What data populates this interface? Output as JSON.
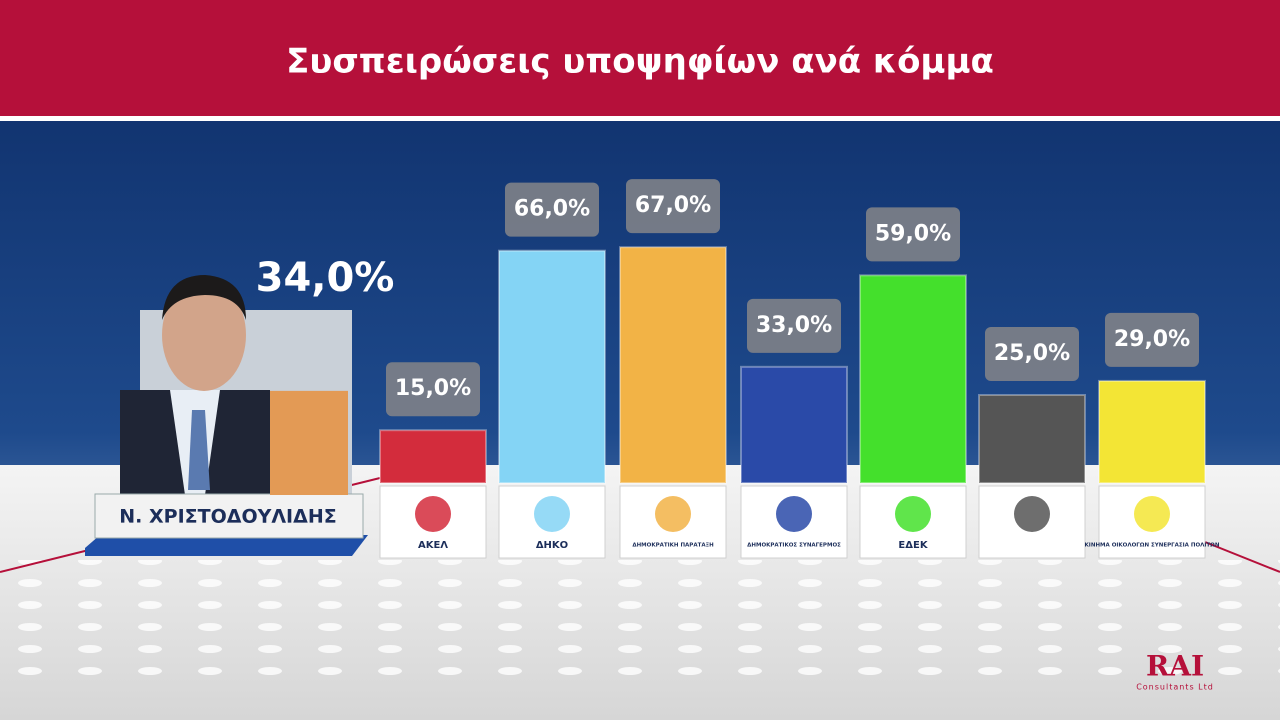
{
  "chart_data": {
    "type": "bar",
    "title": "Συσπειρώσεις υποψηφίων ανά κόμμα",
    "categories": [
      "Ν. ΧΡΙΣΤΟΔΟΥΛΙΔΗΣ",
      "ΑΚΕΛ",
      "ΔΗΚΟ",
      "ΔΗΜΟΚΡΑΤΙΚΗ ΠΑΡΑΤΑΞΗ",
      "ΔΗΜΟΚΡΑΤΙΚΟΣ ΣΥΝΑΓΕΡΜΟΣ",
      "ΕΔΕΚ",
      null,
      "ΚΙΝΗΜΑ ΟΙΚΟΛΟΓΩΝ ΣΥΝΕΡΓΑΣΙΑ ΠΟΛΙΤΩΝ"
    ],
    "values": [
      34,
      15,
      66,
      67,
      33,
      59,
      25,
      29
    ],
    "value_labels": [
      "34,0%",
      "15,0%",
      "66,0%",
      "67,0%",
      "33,0%",
      "59,0%",
      "25,0%",
      "29,0%"
    ],
    "colors": [
      "#e39a55",
      "#d32c3c",
      "#84d4f5",
      "#f2b346",
      "#2a4aa8",
      "#44e02c",
      "#555555",
      "#f3e535"
    ]
  },
  "footer": {
    "brand": "RAI",
    "subtitle": "Consultants Ltd"
  }
}
